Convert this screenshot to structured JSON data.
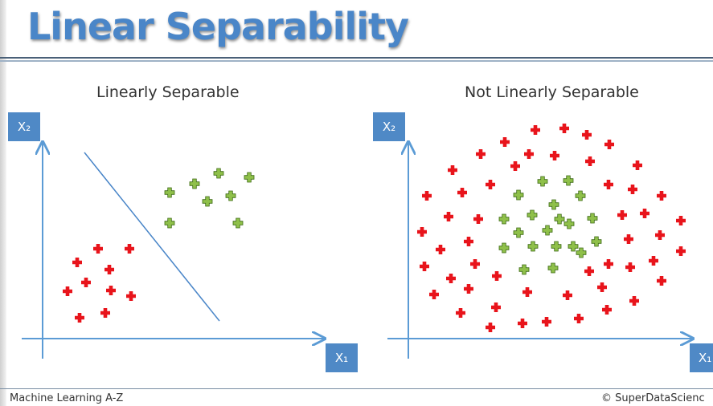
{
  "title": "Linear Separability",
  "left_panel": {
    "subtitle": "Linearly Separable",
    "y_axis": "X₂",
    "x_axis": "X₁"
  },
  "right_panel": {
    "subtitle": "Not Linearly Separable",
    "y_axis": "X₂",
    "x_axis": "X₁"
  },
  "footer": {
    "left": "Machine Learning A-Z",
    "right": "© SuperDataScienc"
  },
  "colors": {
    "title": "#4a86c8",
    "axis": "#5b9bd5",
    "red": "#e8141b",
    "green": "#8fc04a",
    "axis_box": "#4f89c6"
  },
  "icons": {
    "red_point": "red-plus-icon",
    "green_point": "green-plus-icon"
  }
}
